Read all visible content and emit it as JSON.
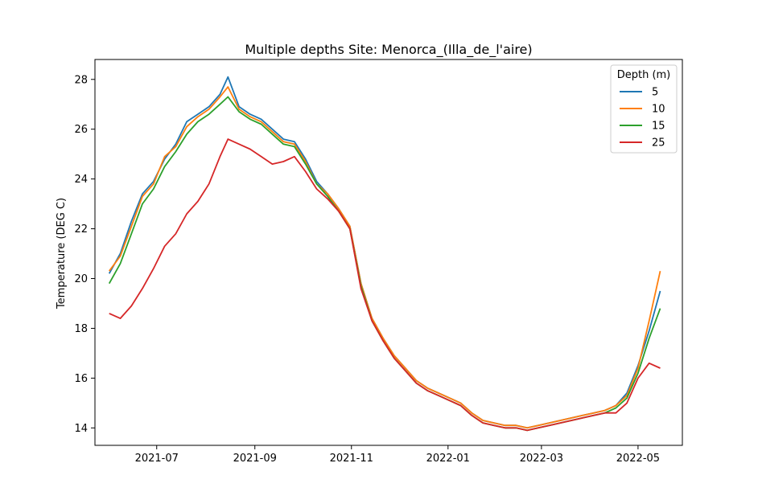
{
  "chart_data": {
    "type": "line",
    "title": "Multiple depths Site: Menorca_(Illa_de_l'aire)",
    "xlabel": "",
    "ylabel": "Temperature (DEG C)",
    "xlim": [
      "2021-05-23",
      "2022-05-29"
    ],
    "ylim": [
      13.3,
      28.8
    ],
    "x_ticks": [
      "2021-07",
      "2021-09",
      "2021-11",
      "2022-01",
      "2022-03",
      "2022-05"
    ],
    "y_ticks": [
      14,
      16,
      18,
      20,
      22,
      24,
      26,
      28
    ],
    "legend": {
      "title": "Depth (m)",
      "position": "top-right"
    },
    "grid": false,
    "colors": {
      "5": "#1f77b4",
      "10": "#ff7f0e",
      "15": "#2ca02c",
      "25": "#d62728"
    },
    "series": [
      {
        "name": "5",
        "color": "#1f77b4",
        "x": [
          "2021-06-01",
          "2021-06-08",
          "2021-06-15",
          "2021-06-22",
          "2021-06-29",
          "2021-07-06",
          "2021-07-13",
          "2021-07-20",
          "2021-07-27",
          "2021-08-03",
          "2021-08-10",
          "2021-08-15",
          "2021-08-22",
          "2021-08-29",
          "2021-09-05",
          "2021-09-12",
          "2021-09-19",
          "2021-09-26",
          "2021-10-03",
          "2021-10-10",
          "2021-10-17",
          "2021-10-24",
          "2021-10-31",
          "2021-11-07",
          "2021-11-14",
          "2021-11-21",
          "2021-11-28",
          "2021-12-05",
          "2021-12-12",
          "2021-12-19",
          "2021-12-26",
          "2022-01-02",
          "2022-01-09",
          "2022-01-16",
          "2022-01-23",
          "2022-01-30",
          "2022-02-06",
          "2022-02-13",
          "2022-02-20",
          "2022-02-27",
          "2022-03-06",
          "2022-03-13",
          "2022-03-20",
          "2022-03-27",
          "2022-04-03",
          "2022-04-10",
          "2022-04-17",
          "2022-04-24",
          "2022-05-01",
          "2022-05-08",
          "2022-05-15"
        ],
        "y": [
          20.2,
          21.0,
          22.3,
          23.4,
          23.9,
          24.8,
          25.4,
          26.3,
          26.6,
          26.9,
          27.4,
          28.1,
          26.9,
          26.6,
          26.4,
          26.0,
          25.6,
          25.5,
          24.8,
          23.9,
          23.4,
          22.8,
          22.1,
          19.8,
          18.4,
          17.6,
          16.9,
          16.4,
          15.9,
          15.6,
          15.4,
          15.2,
          15.0,
          14.6,
          14.3,
          14.2,
          14.1,
          14.1,
          14.0,
          14.1,
          14.2,
          14.3,
          14.4,
          14.5,
          14.6,
          14.7,
          14.9,
          15.4,
          16.5,
          17.9,
          19.5
        ]
      },
      {
        "name": "10",
        "color": "#ff7f0e",
        "x": [
          "2021-06-01",
          "2021-06-08",
          "2021-06-15",
          "2021-06-22",
          "2021-06-29",
          "2021-07-06",
          "2021-07-13",
          "2021-07-20",
          "2021-07-27",
          "2021-08-03",
          "2021-08-10",
          "2021-08-15",
          "2021-08-22",
          "2021-08-29",
          "2021-09-05",
          "2021-09-12",
          "2021-09-19",
          "2021-09-26",
          "2021-10-03",
          "2021-10-10",
          "2021-10-17",
          "2021-10-24",
          "2021-10-31",
          "2021-11-07",
          "2021-11-14",
          "2021-11-21",
          "2021-11-28",
          "2021-12-05",
          "2021-12-12",
          "2021-12-19",
          "2021-12-26",
          "2022-01-02",
          "2022-01-09",
          "2022-01-16",
          "2022-01-23",
          "2022-01-30",
          "2022-02-06",
          "2022-02-13",
          "2022-02-20",
          "2022-02-27",
          "2022-03-06",
          "2022-03-13",
          "2022-03-20",
          "2022-03-27",
          "2022-04-03",
          "2022-04-10",
          "2022-04-17",
          "2022-04-24",
          "2022-05-01",
          "2022-05-08",
          "2022-05-15"
        ],
        "y": [
          20.3,
          20.9,
          22.1,
          23.3,
          23.8,
          24.9,
          25.3,
          26.1,
          26.5,
          26.8,
          27.3,
          27.7,
          26.8,
          26.5,
          26.3,
          25.9,
          25.5,
          25.4,
          24.7,
          23.8,
          23.4,
          22.8,
          22.1,
          19.8,
          18.4,
          17.6,
          16.9,
          16.4,
          15.9,
          15.6,
          15.4,
          15.2,
          15.0,
          14.6,
          14.3,
          14.2,
          14.1,
          14.1,
          14.0,
          14.1,
          14.2,
          14.3,
          14.4,
          14.5,
          14.6,
          14.7,
          14.9,
          15.3,
          16.4,
          18.3,
          20.3
        ]
      },
      {
        "name": "15",
        "color": "#2ca02c",
        "x": [
          "2021-06-01",
          "2021-06-08",
          "2021-06-15",
          "2021-06-22",
          "2021-06-29",
          "2021-07-06",
          "2021-07-13",
          "2021-07-20",
          "2021-07-27",
          "2021-08-03",
          "2021-08-10",
          "2021-08-15",
          "2021-08-22",
          "2021-08-29",
          "2021-09-05",
          "2021-09-12",
          "2021-09-19",
          "2021-09-26",
          "2021-10-03",
          "2021-10-10",
          "2021-10-17",
          "2021-10-24",
          "2021-10-31",
          "2021-11-07",
          "2021-11-14",
          "2021-11-21",
          "2021-11-28",
          "2021-12-05",
          "2021-12-12",
          "2021-12-19",
          "2021-12-26",
          "2022-01-02",
          "2022-01-09",
          "2022-01-16",
          "2022-01-23",
          "2022-01-30",
          "2022-02-06",
          "2022-02-13",
          "2022-02-20",
          "2022-02-27",
          "2022-03-06",
          "2022-03-13",
          "2022-03-20",
          "2022-03-27",
          "2022-04-03",
          "2022-04-10",
          "2022-04-17",
          "2022-04-24",
          "2022-05-01",
          "2022-05-08",
          "2022-05-15"
        ],
        "y": [
          19.8,
          20.6,
          21.8,
          23.0,
          23.6,
          24.5,
          25.1,
          25.8,
          26.3,
          26.6,
          27.0,
          27.3,
          26.7,
          26.4,
          26.2,
          25.8,
          25.4,
          25.3,
          24.6,
          23.8,
          23.3,
          22.7,
          22.0,
          19.7,
          18.3,
          17.5,
          16.8,
          16.3,
          15.8,
          15.5,
          15.3,
          15.1,
          14.9,
          14.5,
          14.2,
          14.1,
          14.0,
          14.0,
          13.9,
          14.0,
          14.1,
          14.2,
          14.3,
          14.4,
          14.5,
          14.6,
          14.8,
          15.2,
          16.2,
          17.6,
          18.8
        ]
      },
      {
        "name": "25",
        "color": "#d62728",
        "x": [
          "2021-06-01",
          "2021-06-08",
          "2021-06-15",
          "2021-06-22",
          "2021-06-29",
          "2021-07-06",
          "2021-07-13",
          "2021-07-20",
          "2021-07-27",
          "2021-08-03",
          "2021-08-10",
          "2021-08-15",
          "2021-08-22",
          "2021-08-29",
          "2021-09-05",
          "2021-09-12",
          "2021-09-19",
          "2021-09-26",
          "2021-10-03",
          "2021-10-10",
          "2021-10-17",
          "2021-10-24",
          "2021-10-31",
          "2021-11-07",
          "2021-11-14",
          "2021-11-21",
          "2021-11-28",
          "2021-12-05",
          "2021-12-12",
          "2021-12-19",
          "2021-12-26",
          "2022-01-02",
          "2022-01-09",
          "2022-01-16",
          "2022-01-23",
          "2022-01-30",
          "2022-02-06",
          "2022-02-13",
          "2022-02-20",
          "2022-02-27",
          "2022-03-06",
          "2022-03-13",
          "2022-03-20",
          "2022-03-27",
          "2022-04-03",
          "2022-04-10",
          "2022-04-17",
          "2022-04-24",
          "2022-05-01",
          "2022-05-08",
          "2022-05-15"
        ],
        "y": [
          18.6,
          18.4,
          18.9,
          19.6,
          20.4,
          21.3,
          21.8,
          22.6,
          23.1,
          23.8,
          24.9,
          25.6,
          25.4,
          25.2,
          24.9,
          24.6,
          24.7,
          24.9,
          24.3,
          23.6,
          23.2,
          22.7,
          22.0,
          19.6,
          18.3,
          17.5,
          16.8,
          16.3,
          15.8,
          15.5,
          15.3,
          15.1,
          14.9,
          14.5,
          14.2,
          14.1,
          14.0,
          14.0,
          13.9,
          14.0,
          14.1,
          14.2,
          14.3,
          14.4,
          14.5,
          14.6,
          14.6,
          15.0,
          16.0,
          16.6,
          16.4
        ]
      }
    ]
  }
}
